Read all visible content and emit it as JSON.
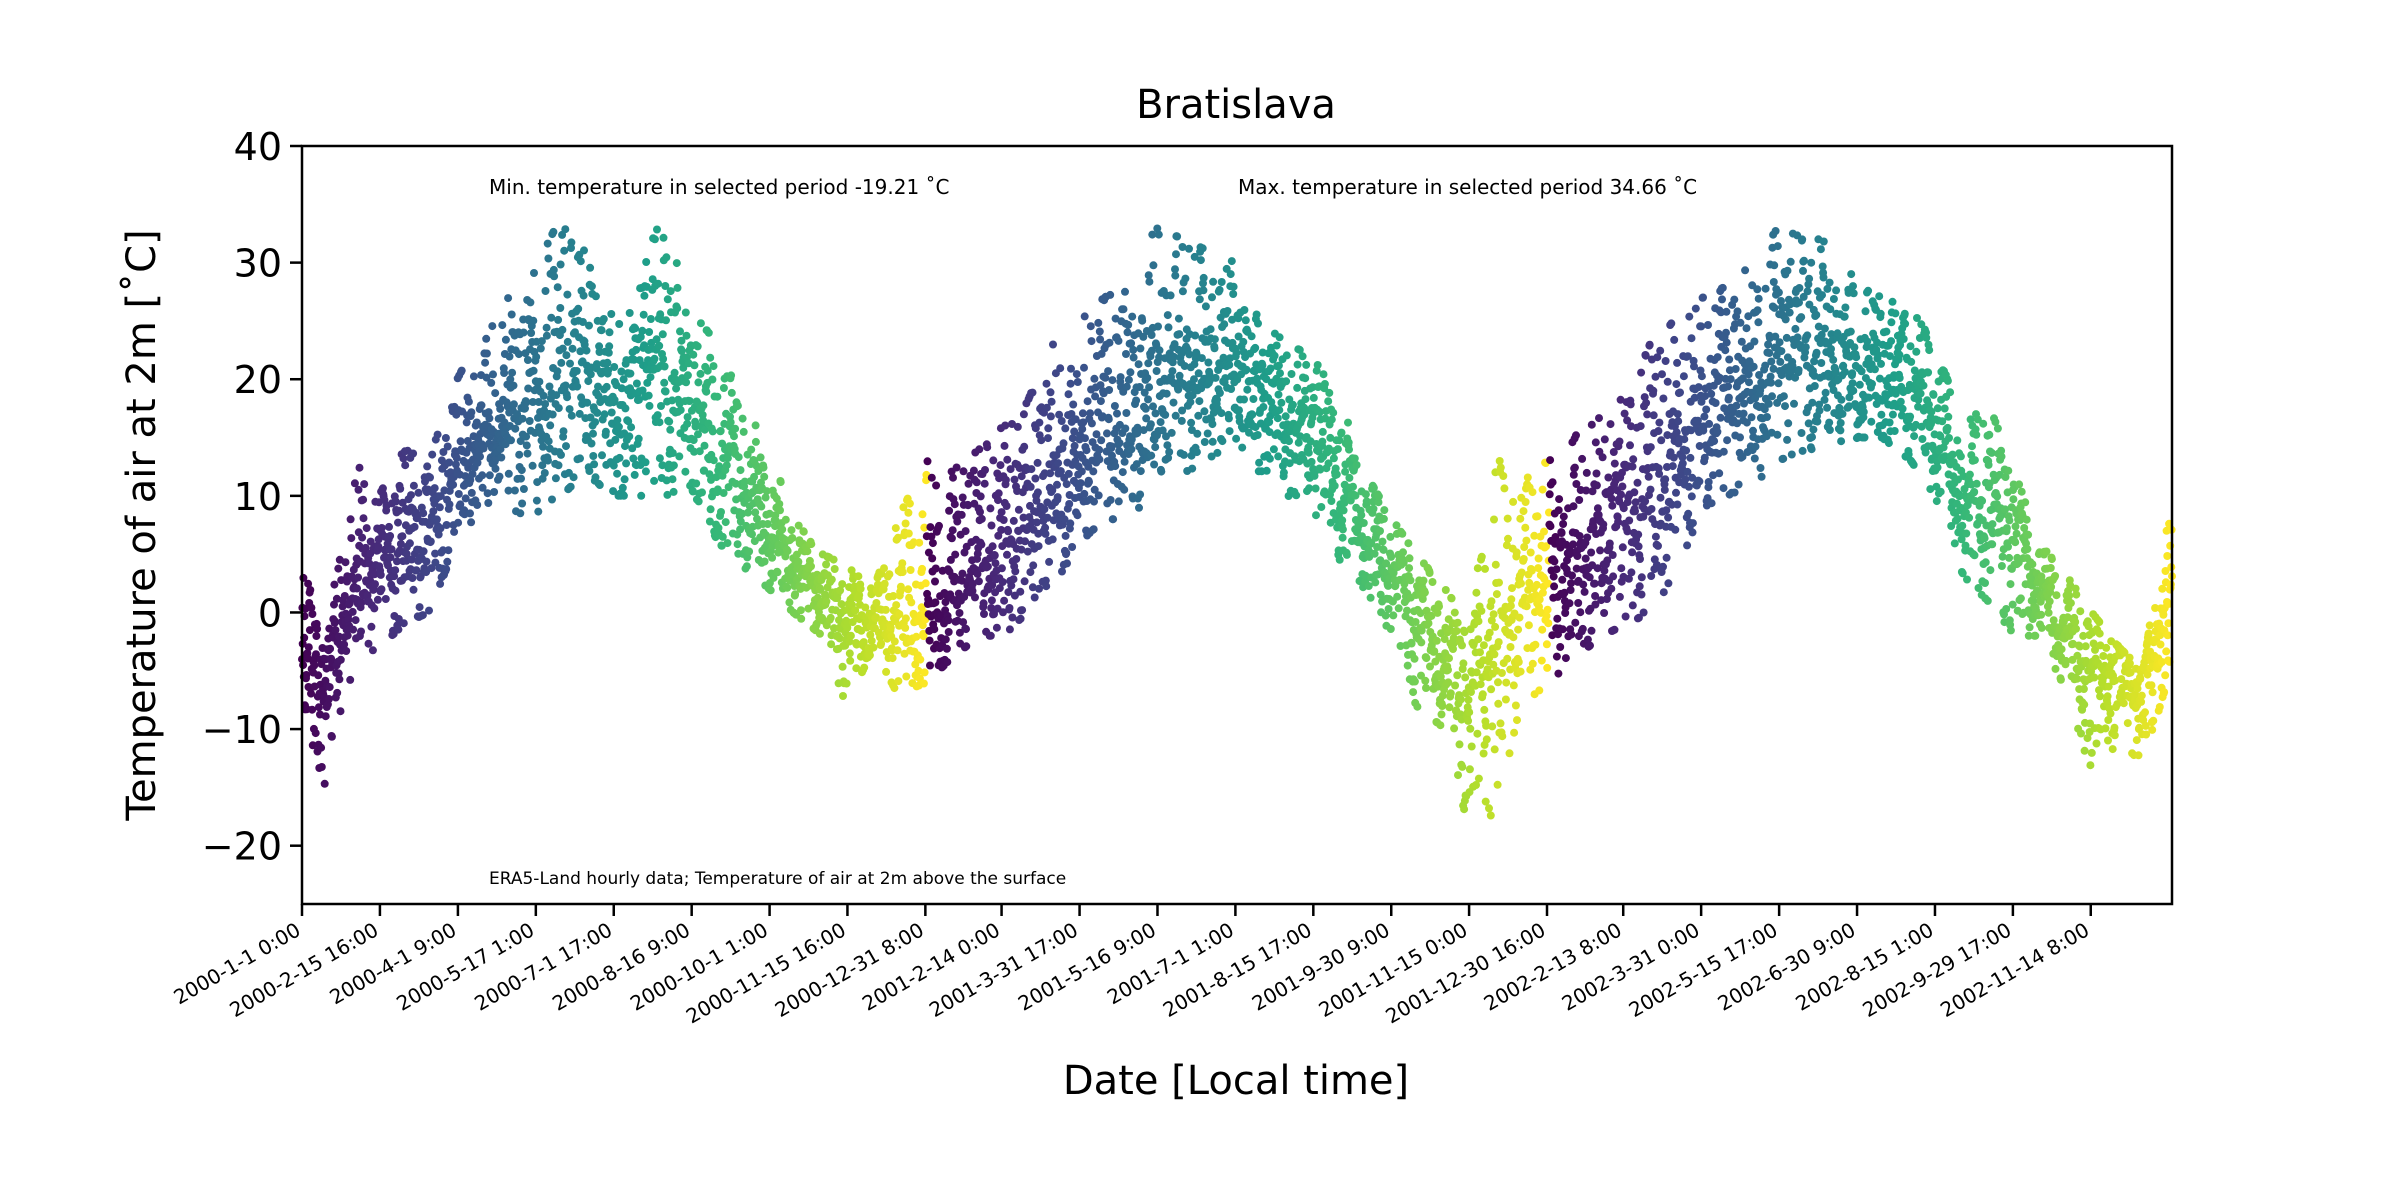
{
  "chart_data": {
    "type": "scatter",
    "title": "Bratislava",
    "xlabel": "Date [Local time]",
    "ylabel": "Temperature of air at 2m [$^{\\circ}$C]",
    "ylabel_display": "Temperature of air at 2m [˚C]",
    "ylim": [
      -25,
      40
    ],
    "yticks": [
      -20,
      -10,
      0,
      10,
      20,
      30,
      40
    ],
    "ytick_labels": [
      "−20",
      "−10",
      "0",
      "10",
      "20",
      "30",
      "40"
    ],
    "xlim": [
      "2000-01-01 00:00",
      "2002-12-31 23:00"
    ],
    "xticks": [
      "2000-1-1 0:00",
      "2000-2-15 16:00",
      "2000-4-1 9:00",
      "2000-5-17 1:00",
      "2000-7-1 17:00",
      "2000-8-16 9:00",
      "2000-10-1 1:00",
      "2000-11-15 16:00",
      "2000-12-31 8:00",
      "2001-2-14 0:00",
      "2001-3-31 17:00",
      "2001-5-16 9:00",
      "2001-7-1 1:00",
      "2001-8-15 17:00",
      "2001-9-30 9:00",
      "2001-11-15 0:00",
      "2001-12-30 16:00",
      "2002-2-13 8:00",
      "2002-3-31 0:00",
      "2002-5-15 17:00",
      "2002-6-30 9:00",
      "2002-8-15 1:00",
      "2002-9-29 17:00",
      "2002-11-14 8:00"
    ],
    "grid": false,
    "colormap": "viridis",
    "color_encoding": "month",
    "annotations": [
      {
        "text": "Min. temperature in selected period -19.21 $^\\circ$C",
        "display": "Min. temperature in selected period -19.21 ˚C"
      },
      {
        "text": "Max. temperature in selected period 34.66 $^\\circ$C",
        "display": "Max. temperature in selected period 34.66 ˚C"
      },
      {
        "text": "ERA5-Land hourly data; Temperature of air at 2m above the surface",
        "display": "ERA5-Land hourly data; Temperature of air at 2m above the surface"
      }
    ],
    "summary": {
      "min": -19.21,
      "max": 34.66
    },
    "series": [
      {
        "x": [
          "2000-01-01",
          "2000-01-15",
          "2000-02-01",
          "2000-02-15",
          "2000-03-01",
          "2000-03-15",
          "2000-04-01",
          "2000-04-15",
          "2000-05-01",
          "2000-05-15",
          "2000-06-01",
          "2000-06-15",
          "2000-07-01",
          "2000-07-15",
          "2000-08-01",
          "2000-08-15",
          "2000-09-01",
          "2000-09-15",
          "2000-10-01",
          "2000-10-15",
          "2000-11-01",
          "2000-11-15",
          "2000-12-01",
          "2000-12-15",
          "2001-01-01",
          "2001-01-15",
          "2001-02-01",
          "2001-02-15",
          "2001-03-01",
          "2001-03-15",
          "2001-04-01",
          "2001-04-15",
          "2001-05-01",
          "2001-05-15",
          "2001-06-01",
          "2001-06-15",
          "2001-07-01",
          "2001-07-15",
          "2001-08-01",
          "2001-08-15",
          "2001-09-01",
          "2001-09-15",
          "2001-10-01",
          "2001-10-15",
          "2001-11-01",
          "2001-11-15",
          "2001-12-01",
          "2001-12-15",
          "2002-01-01",
          "2002-01-15",
          "2002-02-01",
          "2002-02-15",
          "2002-03-01",
          "2002-03-15",
          "2002-04-01",
          "2002-04-15",
          "2002-05-01",
          "2002-05-15",
          "2002-06-01",
          "2002-06-15",
          "2002-07-01",
          "2002-07-15",
          "2002-08-01",
          "2002-08-15",
          "2002-09-01",
          "2002-09-15",
          "2002-10-01",
          "2002-10-15",
          "2002-11-01",
          "2002-11-15",
          "2002-12-01",
          "2002-12-15",
          "2002-12-31"
        ],
        "y_min": [
          -9,
          -15,
          -4,
          -3,
          -1,
          0,
          6,
          9,
          9,
          8,
          10,
          12,
          10,
          10,
          10,
          11,
          6,
          4,
          2,
          0,
          -2,
          -8,
          -3,
          -7,
          -6,
          -4,
          -2,
          -2,
          0,
          2,
          6,
          8,
          8,
          11,
          12,
          13,
          15,
          12,
          10,
          9,
          4,
          2,
          -2,
          -8,
          -10,
          -19,
          -17,
          -8,
          -6,
          -4,
          -2,
          -1,
          0,
          3,
          9,
          10,
          11,
          13,
          14,
          14,
          15,
          15,
          13,
          10,
          3,
          1,
          -2,
          -2,
          -7,
          -14,
          -11,
          -13,
          -5
        ],
        "y_max": [
          4,
          -2,
          13,
          10,
          14,
          13,
          20,
          24,
          27,
          29,
          34,
          31,
          26,
          30,
          34,
          26,
          23,
          18,
          14,
          8,
          5,
          4,
          2,
          8,
          13,
          12,
          14,
          16,
          18,
          23,
          25,
          27,
          28,
          33,
          32,
          31,
          30,
          25,
          23,
          22,
          18,
          12,
          8,
          5,
          2,
          -1,
          14,
          12,
          13,
          15,
          17,
          19,
          23,
          25,
          27,
          28,
          30,
          33,
          32,
          32,
          28,
          27,
          26,
          23,
          16,
          18,
          12,
          6,
          3,
          0,
          -3,
          -5,
          11
        ],
        "y_mean": [
          -4,
          -6,
          3,
          4,
          5,
          7,
          12,
          15,
          17,
          18,
          20,
          21,
          18,
          20,
          21,
          18,
          14,
          11,
          8,
          4,
          2,
          -1,
          -1,
          0,
          -1,
          3,
          4,
          6,
          8,
          10,
          13,
          16,
          17,
          20,
          22,
          21,
          21,
          19,
          17,
          15,
          11,
          7,
          4,
          -1,
          -4,
          -7,
          -2,
          2,
          2,
          5,
          6,
          8,
          10,
          13,
          17,
          18,
          19,
          21,
          22,
          22,
          21,
          20,
          19,
          16,
          10,
          8,
          6,
          2,
          -2,
          -5,
          -5,
          -6,
          2
        ]
      }
    ]
  }
}
